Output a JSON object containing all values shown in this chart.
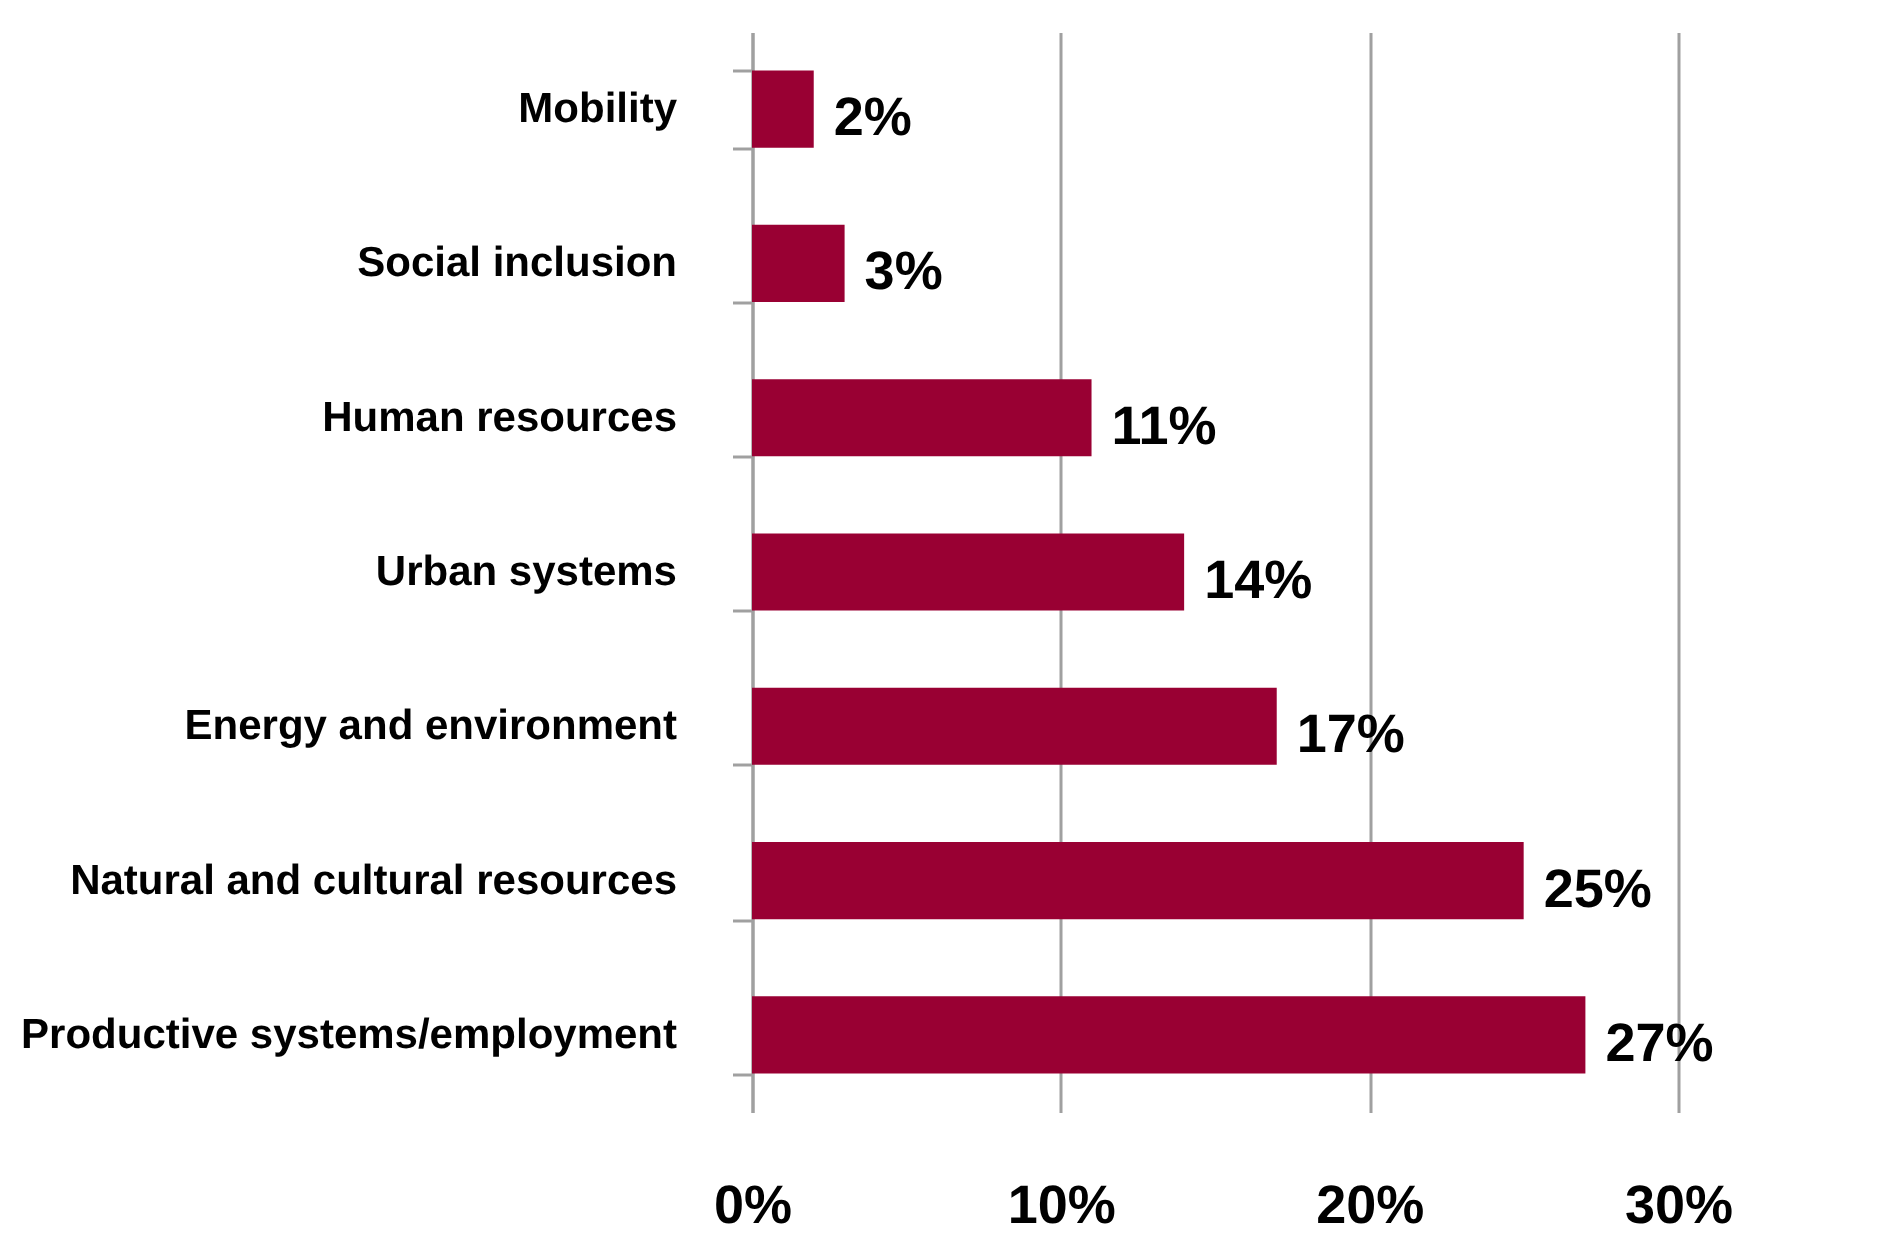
{
  "chart_data": {
    "type": "bar",
    "orientation": "horizontal",
    "categories": [
      "Mobility",
      "Social inclusion",
      "Human resources",
      "Urban systems",
      "Energy and environment",
      "Natural and cultural resources",
      "Productive systems/employment"
    ],
    "values": [
      2,
      3,
      11,
      14,
      17,
      25,
      27
    ],
    "value_labels": [
      "2%",
      "3%",
      "11%",
      "14%",
      "17%",
      "25%",
      "27%"
    ],
    "color": "#990033",
    "xlim": [
      0,
      30
    ],
    "xticks": [
      {
        "value": 0,
        "label": "0%"
      },
      {
        "value": 10,
        "label": "10%"
      },
      {
        "value": 20,
        "label": "20%"
      },
      {
        "value": 30,
        "label": "30%"
      }
    ],
    "grid": "x"
  }
}
